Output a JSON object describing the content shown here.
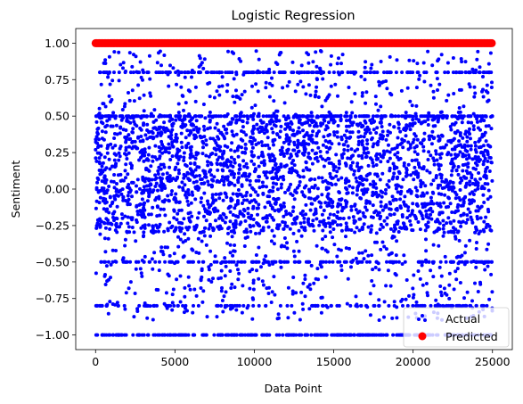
{
  "chart_data": {
    "type": "scatter",
    "title": "Logistic Regression",
    "xlabel": "Data Point",
    "ylabel": "Sentiment",
    "xlim": [
      -1250,
      26250
    ],
    "ylim": [
      -1.1,
      1.1
    ],
    "xticks": [
      0,
      5000,
      10000,
      15000,
      20000,
      25000
    ],
    "xtick_labels": [
      "0",
      "5000",
      "10000",
      "15000",
      "20000",
      "25000"
    ],
    "yticks": [
      -1.0,
      -0.75,
      -0.5,
      -0.25,
      0.0,
      0.25,
      0.5,
      0.75,
      1.0
    ],
    "ytick_labels": [
      "−1.00",
      "−0.75",
      "−0.50",
      "−0.25",
      "0.00",
      "0.25",
      "0.50",
      "0.75",
      "1.00"
    ],
    "grid": false,
    "legend_position": "lower-right",
    "x_range": [
      0,
      25000
    ],
    "series": [
      {
        "name": "Actual",
        "color": "#0000ff",
        "marker": "dot",
        "description_levels": [
          -1.0,
          -0.8,
          -0.5,
          -0.4,
          -0.3,
          -0.2,
          -0.1,
          0.0,
          0.1,
          0.2,
          0.3,
          0.4,
          0.5,
          0.8,
          1.0
        ],
        "distribution": "dense between -0.3 and 0.5, horizontal bands at -1.00, -0.80, -0.50, 0.50, 0.80"
      },
      {
        "name": "Predicted",
        "color": "#ff0000",
        "marker": "circle",
        "constant_value": 1.0
      }
    ]
  }
}
